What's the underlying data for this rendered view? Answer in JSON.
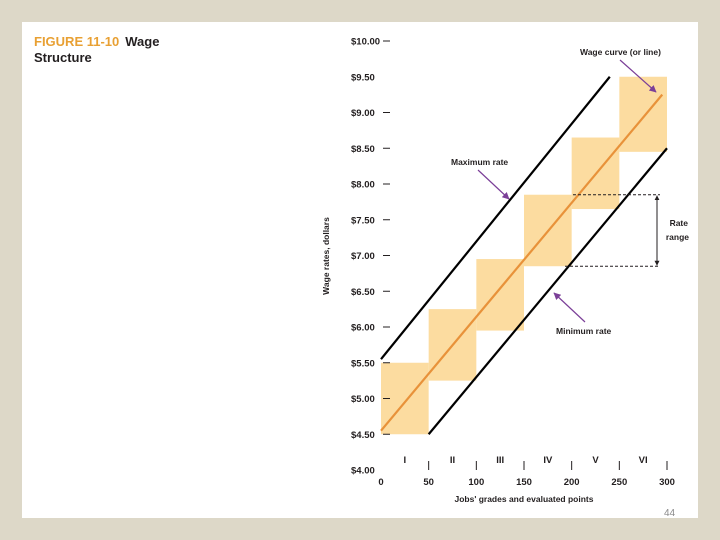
{
  "figure": {
    "number": "FIGURE 11-10",
    "title_line1": "Wage",
    "title_line2": "Structure"
  },
  "page_number": "44",
  "colors": {
    "background": "#ddd8c8",
    "slide": "#ffffff",
    "grade_box": "#fcdca0",
    "wage_curve": "#e8923a",
    "rate_lines": "#000000",
    "arrow": "#7b3f98",
    "title_accent": "#e8a033"
  },
  "chart_data": {
    "type": "line",
    "title": "",
    "xlabel": "Jobs' grades and evaluated points",
    "ylabel": "Wage rates, dollars",
    "xlim": [
      0,
      300
    ],
    "ylim": [
      4.0,
      10.0
    ],
    "x_ticks": [
      0,
      50,
      100,
      150,
      200,
      250,
      300
    ],
    "x_tick_labels": [
      "0",
      "50",
      "100",
      "150",
      "200",
      "250",
      "300"
    ],
    "y_ticks": [
      4.0,
      4.5,
      5.0,
      5.5,
      6.0,
      6.5,
      7.0,
      7.5,
      8.0,
      8.5,
      9.0,
      9.5,
      10.0
    ],
    "y_tick_labels": [
      "$4.00",
      "$4.50",
      "$5.00",
      "$5.50",
      "$6.00",
      "$6.50",
      "$7.00",
      "$7.50",
      "$8.00",
      "$8.50",
      "$9.00",
      "$9.50",
      "$10.00"
    ],
    "grades": [
      {
        "label": "I",
        "x_start": 0,
        "x_end": 50,
        "y_min": 4.5,
        "y_max": 5.5
      },
      {
        "label": "II",
        "x_start": 50,
        "x_end": 100,
        "y_min": 5.25,
        "y_max": 6.25
      },
      {
        "label": "III",
        "x_start": 100,
        "x_end": 150,
        "y_min": 5.95,
        "y_max": 6.95
      },
      {
        "label": "IV",
        "x_start": 150,
        "x_end": 200,
        "y_min": 6.85,
        "y_max": 7.85
      },
      {
        "label": "V",
        "x_start": 200,
        "x_end": 250,
        "y_min": 7.65,
        "y_max": 8.65
      },
      {
        "label": "VI",
        "x_start": 250,
        "x_end": 300,
        "y_min": 8.45,
        "y_max": 9.5
      }
    ],
    "series": [
      {
        "name": "Wage curve (or line)",
        "x": [
          0,
          295
        ],
        "y": [
          4.55,
          9.25
        ]
      },
      {
        "name": "Maximum rate",
        "x": [
          0,
          240
        ],
        "y": [
          5.55,
          9.5
        ]
      },
      {
        "name": "Minimum rate",
        "x": [
          50,
          300
        ],
        "y": [
          4.5,
          8.5
        ]
      }
    ],
    "rate_range": {
      "label_line1": "Rate",
      "label_line2": "range",
      "y_low": 6.85,
      "y_high": 7.85
    },
    "annotations": [
      {
        "text": "Wage curve (or line)",
        "points_to_x": 290,
        "points_to_y": 9.3
      },
      {
        "text": "Maximum rate",
        "points_to_x": 135,
        "points_to_y": 7.75
      },
      {
        "text": "Minimum rate",
        "points_to_x": 180,
        "points_to_y": 6.5
      }
    ]
  }
}
